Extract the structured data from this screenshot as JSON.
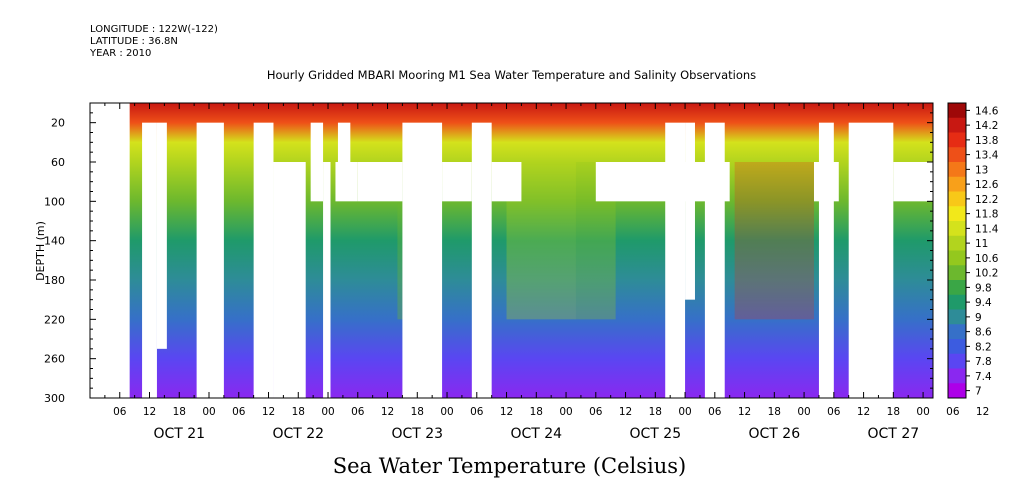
{
  "header": {
    "longitude": "LONGITUDE : 122W(-122)",
    "latitude": "LATITUDE : 36.8N",
    "year": "YEAR : 2010"
  },
  "chart_data": {
    "type": "heatmap",
    "title": "Hourly Gridded MBARI Mooring M1 Sea Water Temperature and Salinity Observations",
    "xlabel": "Sea Water Temperature (Celsius)",
    "ylabel": "DEPTH (m)",
    "y_reversed": true,
    "ylim": [
      0,
      300
    ],
    "y_ticks": [
      20,
      60,
      100,
      140,
      180,
      220,
      260,
      300
    ],
    "x_hour_ticks": [
      "06",
      "12",
      "18",
      "00",
      "06",
      "12",
      "18",
      "00",
      "06",
      "12",
      "18",
      "00",
      "06",
      "12",
      "18",
      "00",
      "06",
      "12",
      "18",
      "00",
      "06",
      "12",
      "18",
      "00",
      "06",
      "12",
      "18",
      "00",
      "06",
      "12"
    ],
    "x_day_labels": [
      "OCT 21",
      "OCT 22",
      "OCT 23",
      "OCT 24",
      "OCT 25",
      "OCT 26",
      "OCT 27"
    ],
    "x_range_hours": [
      0,
      158
    ],
    "colorbar": {
      "levels": [
        7,
        7.4,
        7.8,
        8.2,
        8.6,
        9,
        9.4,
        9.8,
        10.2,
        10.6,
        11,
        11.4,
        11.8,
        12.2,
        12.6,
        13,
        13.4,
        13.8,
        14.2,
        14.6
      ],
      "labels": [
        "14.6",
        "14.2",
        "13.8",
        "13.4",
        "13",
        "12.6",
        "12.2",
        "11.8",
        "11.4",
        "11",
        "10.6",
        "10.2",
        "9.8",
        "9.4",
        "9",
        "8.6",
        "8.2",
        "7.8",
        "7.4",
        "7"
      ],
      "colors": [
        "#ad00e8",
        "#8a28f0",
        "#5a46f2",
        "#3c5ce0",
        "#3670c8",
        "#2e8c98",
        "#1f9a6a",
        "#3aa646",
        "#6cb82e",
        "#94c81e",
        "#b2d41e",
        "#d4e21c",
        "#f2e81a",
        "#f8c818",
        "#f8a01a",
        "#f47818",
        "#ee5018",
        "#e62c14",
        "#c81812",
        "#9e0808"
      ]
    },
    "temperature_profile": [
      {
        "depth": 0,
        "value": 14.4
      },
      {
        "depth": 20,
        "value": 13.4
      },
      {
        "depth": 40,
        "value": 11.6
      },
      {
        "depth": 60,
        "value": 11.0
      },
      {
        "depth": 100,
        "value": 10.4
      },
      {
        "depth": 140,
        "value": 9.6
      },
      {
        "depth": 180,
        "value": 9.0
      },
      {
        "depth": 220,
        "value": 8.6
      },
      {
        "depth": 260,
        "value": 8.0
      },
      {
        "depth": 300,
        "value": 7.4
      }
    ],
    "missing_data": [
      {
        "t": [
          -6,
          2
        ],
        "z": [
          0,
          300
        ]
      },
      {
        "t": [
          4.5,
          7.5
        ],
        "z": [
          20,
          300
        ]
      },
      {
        "t": [
          7.5,
          9.5
        ],
        "z": [
          20,
          250
        ]
      },
      {
        "t": [
          15.5,
          21
        ],
        "z": [
          20,
          300
        ]
      },
      {
        "t": [
          27,
          31
        ],
        "z": [
          20,
          300
        ]
      },
      {
        "t": [
          31,
          37.5
        ],
        "z": [
          60,
          300
        ]
      },
      {
        "t": [
          38.5,
          41
        ],
        "z": [
          20,
          100
        ]
      },
      {
        "t": [
          41,
          42.5
        ],
        "z": [
          60,
          300
        ]
      },
      {
        "t": [
          43.5,
          48
        ],
        "z": [
          60,
          100
        ]
      },
      {
        "t": [
          44,
          46.5
        ],
        "z": [
          20,
          60
        ]
      },
      {
        "t": [
          48,
          57
        ],
        "z": [
          60,
          100
        ]
      },
      {
        "t": [
          57,
          65
        ],
        "z": [
          20,
          300
        ]
      },
      {
        "t": [
          65,
          71
        ],
        "z": [
          60,
          100
        ]
      },
      {
        "t": [
          71,
          75
        ],
        "z": [
          20,
          300
        ]
      },
      {
        "t": [
          75,
          81
        ],
        "z": [
          60,
          100
        ]
      },
      {
        "t": [
          96,
          123
        ],
        "z": [
          60,
          100
        ]
      },
      {
        "t": [
          110,
          114
        ],
        "z": [
          20,
          300
        ]
      },
      {
        "t": [
          114,
          116
        ],
        "z": [
          20,
          200
        ]
      },
      {
        "t": [
          118,
          122
        ],
        "z": [
          20,
          300
        ]
      },
      {
        "t": [
          140,
          145
        ],
        "z": [
          60,
          100
        ]
      },
      {
        "t": [
          141,
          144
        ],
        "z": [
          20,
          300
        ]
      },
      {
        "t": [
          147,
          156
        ],
        "z": [
          20,
          300
        ]
      },
      {
        "t": [
          156,
          164
        ],
        "z": [
          60,
          100
        ]
      }
    ]
  }
}
